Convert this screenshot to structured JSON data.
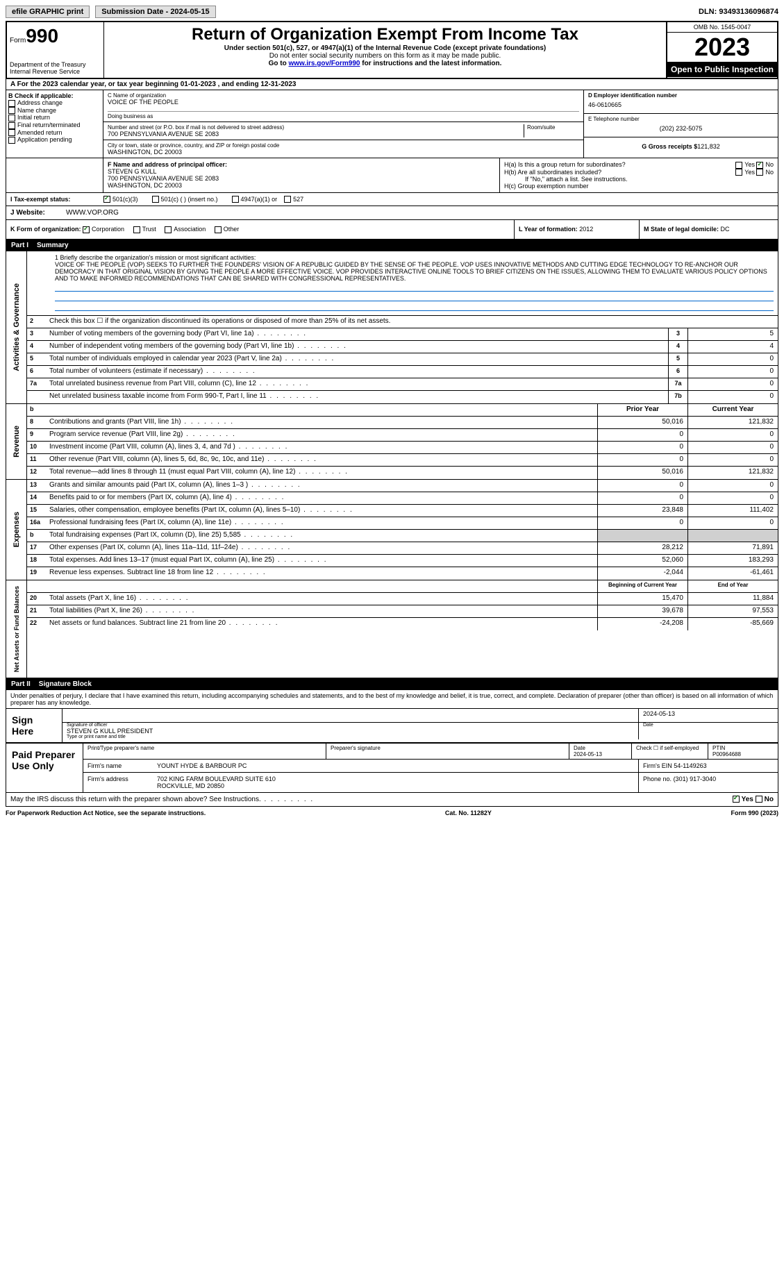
{
  "topbar": {
    "efile": "efile GRAPHIC print",
    "submission": "Submission Date - 2024-05-15",
    "dln": "DLN: 93493136096874"
  },
  "header": {
    "form_prefix": "Form",
    "form_num": "990",
    "title": "Return of Organization Exempt From Income Tax",
    "subtitle1": "Under section 501(c), 527, or 4947(a)(1) of the Internal Revenue Code (except private foundations)",
    "subtitle2": "Do not enter social security numbers on this form as it may be made public.",
    "subtitle3_pre": "Go to ",
    "subtitle3_link": "www.irs.gov/Form990",
    "subtitle3_post": " for instructions and the latest information.",
    "dept": "Department of the Treasury",
    "irs": "Internal Revenue Service",
    "omb": "OMB No. 1545-0047",
    "year": "2023",
    "open": "Open to Public Inspection"
  },
  "section_a": {
    "text_pre": "A For the 2023 calendar year, or tax year beginning ",
    "begin": "01-01-2023",
    "mid": " , and ending ",
    "end": "12-31-2023"
  },
  "col_b": {
    "label": "B Check if applicable:",
    "items": [
      "Address change",
      "Name change",
      "Initial return",
      "Final return/terminated",
      "Amended return",
      "Application pending"
    ]
  },
  "col_c": {
    "name_label": "C Name of organization",
    "name": "VOICE OF THE PEOPLE",
    "dba_label": "Doing business as",
    "addr_label": "Number and street (or P.O. box if mail is not delivered to street address)",
    "room_label": "Room/suite",
    "addr": "700 PENNSYLVANIA AVENUE SE 2083",
    "city_label": "City or town, state or province, country, and ZIP or foreign postal code",
    "city": "WASHINGTON, DC  20003"
  },
  "col_d": {
    "ein_label": "D Employer identification number",
    "ein": "46-0610665",
    "tel_label": "E Telephone number",
    "tel": "(202) 232-5075",
    "gross_label": "G Gross receipts $",
    "gross": "121,832"
  },
  "officer": {
    "label": "F  Name and address of principal officer:",
    "name": "STEVEN G KULL",
    "addr1": "700 PENNSYLVANIA AVENUE SE 2083",
    "addr2": "WASHINGTON, DC  20003"
  },
  "h": {
    "a": "H(a)  Is this a group return for subordinates?",
    "b": "H(b)  Are all subordinates included?",
    "b_note": "If \"No,\" attach a list. See instructions.",
    "c": "H(c)  Group exemption number",
    "yes": "Yes",
    "no": "No"
  },
  "i": {
    "label": "I  Tax-exempt status:",
    "c3": "501(c)(3)",
    "c": "501(c) (  ) (insert no.)",
    "a1": "4947(a)(1) or",
    "527": "527"
  },
  "j": {
    "label": "J  Website:",
    "value": "WWW.VOP.ORG"
  },
  "k": {
    "label": "K Form of organization:",
    "corp": "Corporation",
    "trust": "Trust",
    "assoc": "Association",
    "other": "Other"
  },
  "l": {
    "label": "L Year of formation:",
    "value": "2012"
  },
  "m": {
    "label": "M State of legal domicile:",
    "value": "DC"
  },
  "part1": {
    "label": "Part I",
    "title": "Summary"
  },
  "mission": {
    "label": "1  Briefly describe the organization's mission or most significant activities:",
    "text": "VOICE OF THE PEOPLE (VOP) SEEKS TO FURTHER THE FOUNDERS' VISION OF A REPUBLIC GUIDED BY THE SENSE OF THE PEOPLE. VOP USES INNOVATIVE METHODS AND CUTTING EDGE TECHNOLOGY TO RE-ANCHOR OUR DEMOCRACY IN THAT ORIGINAL VISION BY GIVING THE PEOPLE A MORE EFFECTIVE VOICE. VOP PROVIDES INTERACTIVE ONLINE TOOLS TO BRIEF CITIZENS ON THE ISSUES, ALLOWING THEM TO EVALUATE VARIOUS POLICY OPTIONS AND TO MAKE INFORMED RECOMMENDATIONS THAT CAN BE SHARED WITH CONGRESSIONAL REPRESENTATIVES."
  },
  "gov_rows": [
    {
      "n": "2",
      "t": "Check this box ☐ if the organization discontinued its operations or disposed of more than 25% of its net assets."
    },
    {
      "n": "3",
      "t": "Number of voting members of the governing body (Part VI, line 1a)",
      "cn": "3",
      "v": "5"
    },
    {
      "n": "4",
      "t": "Number of independent voting members of the governing body (Part VI, line 1b)",
      "cn": "4",
      "v": "4"
    },
    {
      "n": "5",
      "t": "Total number of individuals employed in calendar year 2023 (Part V, line 2a)",
      "cn": "5",
      "v": "0"
    },
    {
      "n": "6",
      "t": "Total number of volunteers (estimate if necessary)",
      "cn": "6",
      "v": "0"
    },
    {
      "n": "7a",
      "t": "Total unrelated business revenue from Part VIII, column (C), line 12",
      "cn": "7a",
      "v": "0"
    },
    {
      "n": "",
      "t": "Net unrelated business taxable income from Form 990-T, Part I, line 11",
      "cn": "7b",
      "v": "0"
    }
  ],
  "rev_header": {
    "b": "b",
    "prior": "Prior Year",
    "current": "Current Year"
  },
  "rev_rows": [
    {
      "n": "8",
      "t": "Contributions and grants (Part VIII, line 1h)",
      "p": "50,016",
      "c": "121,832"
    },
    {
      "n": "9",
      "t": "Program service revenue (Part VIII, line 2g)",
      "p": "0",
      "c": "0"
    },
    {
      "n": "10",
      "t": "Investment income (Part VIII, column (A), lines 3, 4, and 7d )",
      "p": "0",
      "c": "0"
    },
    {
      "n": "11",
      "t": "Other revenue (Part VIII, column (A), lines 5, 6d, 8c, 9c, 10c, and 11e)",
      "p": "0",
      "c": "0"
    },
    {
      "n": "12",
      "t": "Total revenue—add lines 8 through 11 (must equal Part VIII, column (A), line 12)",
      "p": "50,016",
      "c": "121,832"
    }
  ],
  "exp_rows": [
    {
      "n": "13",
      "t": "Grants and similar amounts paid (Part IX, column (A), lines 1–3 )",
      "p": "0",
      "c": "0"
    },
    {
      "n": "14",
      "t": "Benefits paid to or for members (Part IX, column (A), line 4)",
      "p": "0",
      "c": "0"
    },
    {
      "n": "15",
      "t": "Salaries, other compensation, employee benefits (Part IX, column (A), lines 5–10)",
      "p": "23,848",
      "c": "111,402"
    },
    {
      "n": "16a",
      "t": "Professional fundraising fees (Part IX, column (A), line 11e)",
      "p": "0",
      "c": "0"
    },
    {
      "n": "b",
      "t": "Total fundraising expenses (Part IX, column (D), line 25) 5,585",
      "p": "",
      "c": "",
      "shaded": true
    },
    {
      "n": "17",
      "t": "Other expenses (Part IX, column (A), lines 11a–11d, 11f–24e)",
      "p": "28,212",
      "c": "71,891"
    },
    {
      "n": "18",
      "t": "Total expenses. Add lines 13–17 (must equal Part IX, column (A), line 25)",
      "p": "52,060",
      "c": "183,293"
    },
    {
      "n": "19",
      "t": "Revenue less expenses. Subtract line 18 from line 12",
      "p": "-2,044",
      "c": "-61,461"
    }
  ],
  "net_header": {
    "begin": "Beginning of Current Year",
    "end": "End of Year"
  },
  "net_rows": [
    {
      "n": "20",
      "t": "Total assets (Part X, line 16)",
      "p": "15,470",
      "c": "11,884"
    },
    {
      "n": "21",
      "t": "Total liabilities (Part X, line 26)",
      "p": "39,678",
      "c": "97,553"
    },
    {
      "n": "22",
      "t": "Net assets or fund balances. Subtract line 21 from line 20",
      "p": "-24,208",
      "c": "-85,669"
    }
  ],
  "part2": {
    "label": "Part II",
    "title": "Signature Block"
  },
  "sig": {
    "decl": "Under penalties of perjury, I declare that I have examined this return, including accompanying schedules and statements, and to the best of my knowledge and belief, it is true, correct, and complete. Declaration of preparer (other than officer) is based on all information of which preparer has any knowledge.",
    "sign_here": "Sign Here",
    "sig_label": "Signature of officer",
    "date_label": "Date",
    "date": "2024-05-13",
    "name": "STEVEN G KULL  PRESIDENT",
    "name_label": "Type or print name and title",
    "paid": "Paid Preparer Use Only",
    "prep_name_label": "Print/Type preparer's name",
    "prep_sig_label": "Preparer's signature",
    "prep_date": "2024-05-13",
    "check_label": "Check ☐ if self-employed",
    "ptin_label": "PTIN",
    "ptin": "P00964688",
    "firm_name_label": "Firm's name",
    "firm_name": "YOUNT HYDE & BARBOUR PC",
    "firm_ein_label": "Firm's EIN",
    "firm_ein": "54-1149263",
    "firm_addr_label": "Firm's address",
    "firm_addr1": "702 KING FARM BOULEVARD SUITE 610",
    "firm_addr2": "ROCKVILLE, MD  20850",
    "phone_label": "Phone no.",
    "phone": "(301) 917-3040",
    "discuss": "May the IRS discuss this return with the preparer shown above? See Instructions."
  },
  "footer": {
    "left": "For Paperwork Reduction Act Notice, see the separate instructions.",
    "mid": "Cat. No. 11282Y",
    "right": "Form 990 (2023)"
  },
  "labels": {
    "activities": "Activities & Governance",
    "revenue": "Revenue",
    "expenses": "Expenses",
    "net": "Net Assets or Fund Balances"
  }
}
